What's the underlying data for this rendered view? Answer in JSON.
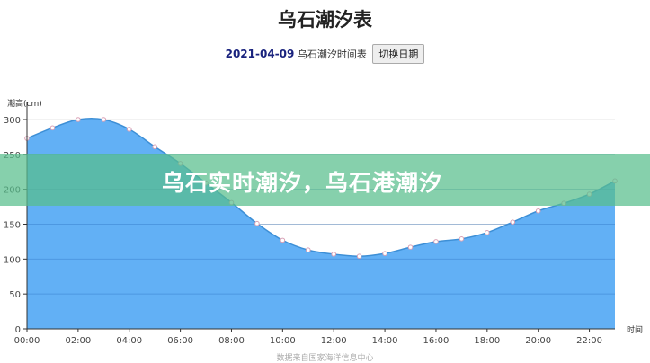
{
  "header": {
    "title": "乌石潮汐表",
    "date": "2021-04-09",
    "subtitle": "乌石潮汐时间表",
    "switch_button": "切换日期"
  },
  "banner": {
    "text": "乌石实时潮汐，乌石港潮汐"
  },
  "source": "数据来自国家海洋信息中心",
  "chart_data": {
    "type": "area",
    "ylabel": "潮高(cm)",
    "xlabel": "时间",
    "ylim": [
      0,
      300
    ],
    "yticks": [
      0,
      50,
      100,
      150,
      200,
      250,
      300
    ],
    "xtick_labels": [
      "00:00",
      "02:00",
      "04:00",
      "06:00",
      "08:00",
      "10:00",
      "12:00",
      "14:00",
      "16:00",
      "18:00",
      "20:00",
      "22:00"
    ],
    "x": [
      "00:00",
      "01:00",
      "02:00",
      "03:00",
      "04:00",
      "05:00",
      "06:00",
      "07:00",
      "08:00",
      "09:00",
      "10:00",
      "11:00",
      "12:00",
      "13:00",
      "14:00",
      "15:00",
      "16:00",
      "17:00",
      "18:00",
      "19:00",
      "20:00",
      "21:00",
      "22:00",
      "23:00"
    ],
    "values": [
      273,
      288,
      300,
      300,
      286,
      261,
      237,
      209,
      181,
      151,
      127,
      113,
      107,
      104,
      108,
      117,
      125,
      129,
      138,
      153,
      169,
      180,
      193,
      212
    ],
    "grid": true,
    "colors": {
      "area": "#62b0f5",
      "line": "#3d8fd6",
      "point": "#d9a0b4"
    }
  }
}
